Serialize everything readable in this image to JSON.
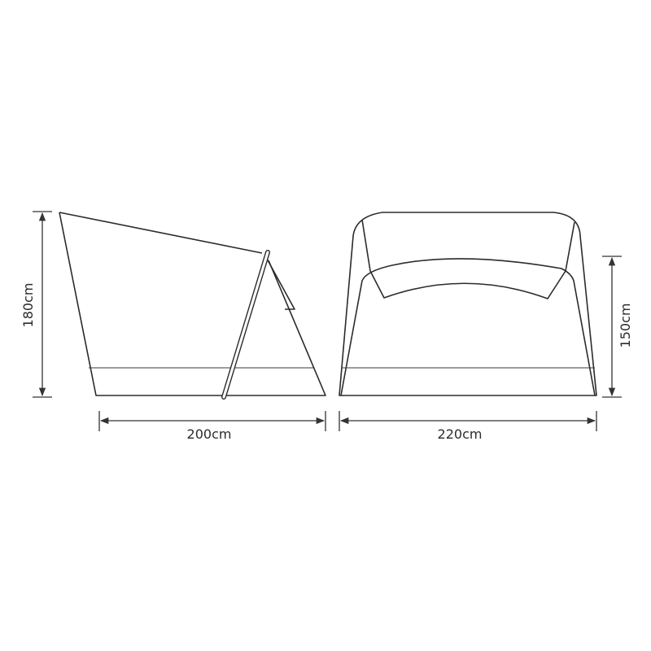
{
  "side_view": {
    "height_label": "180cm",
    "width_label": "200cm"
  },
  "front_view": {
    "height_label": "150cm",
    "width_label": "220cm"
  },
  "colors": {
    "line": "#2b2b2b",
    "background": "#ffffff"
  }
}
